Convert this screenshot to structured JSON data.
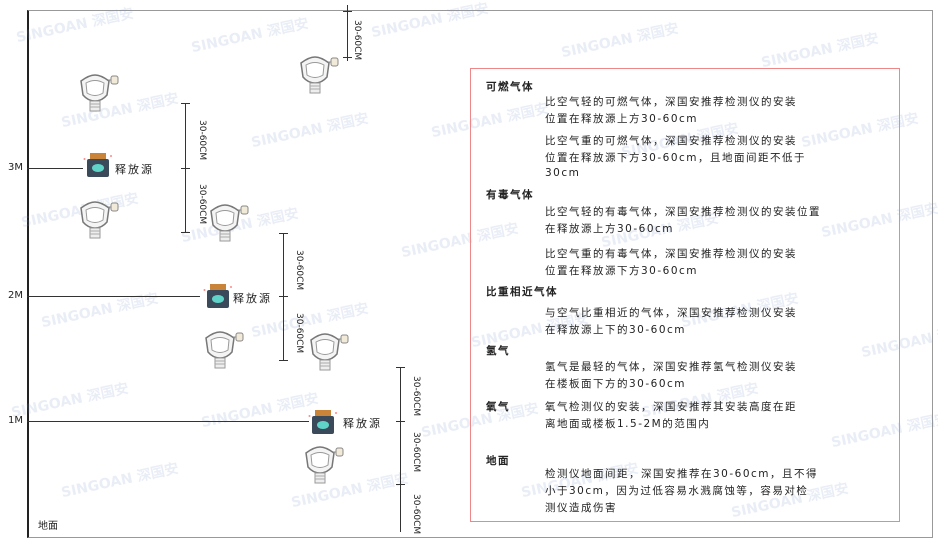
{
  "watermark": "SINGOAN 深国安",
  "levels": [
    "3M",
    "2M",
    "1M"
  ],
  "ground_label": "地面",
  "source_label": "释放源",
  "dimension_label": "30-60CM",
  "colors": {
    "box_border": "#e88888",
    "source_body": "#3a4a5a",
    "source_cap": "#c9843a",
    "source_face": "#5fd3c8"
  },
  "info": {
    "sections": [
      {
        "heading": "可燃气体",
        "paragraphs": [
          [
            "比空气轻的可燃气体，深国安推荐检测仪的安装",
            "位置在释放源上方30-60cm"
          ],
          [
            "比空气重的可燃气体，深国安推荐检测仪的安装",
            "位置在释放源下方30-60cm，且地面间距不低于",
            "30cm"
          ]
        ]
      },
      {
        "heading": "有毒气体",
        "paragraphs": [
          [
            "比空气轻的有毒气体，深国安推荐检测仪的安装位置",
            "在释放源上方30-60cm"
          ],
          [
            "比空气重的有毒气体，深国安推荐检测仪的安装",
            "位置在释放源下方30-60cm"
          ]
        ]
      },
      {
        "heading": "比重相近气体",
        "paragraphs": [
          [
            "与空气比重相近的气体，深国安推荐检测仪安装",
            "在释放源上下的30-60cm"
          ]
        ]
      },
      {
        "heading": "氢气",
        "paragraphs": [
          [
            "氢气是最轻的气体，深国安推荐氢气检测仪安装",
            "在楼板面下方的30-60cm"
          ]
        ]
      },
      {
        "heading": "氧气",
        "paragraphs": [
          [
            "氧气检测仪的安装，深国安推荐其安装高度在距",
            "离地面或楼板1.5-2M的范围内"
          ]
        ]
      },
      {
        "heading": "地面",
        "paragraphs": [
          [
            "检测仪地面间距，深国安推荐在30-60cm，且不得",
            "小于30cm，因为过低容易水溅腐蚀等，容易对检",
            "测仪造成伤害"
          ]
        ]
      }
    ]
  }
}
